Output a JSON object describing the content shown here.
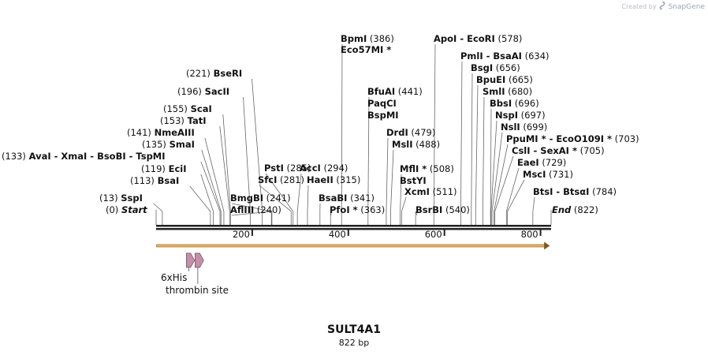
{
  "credit": {
    "prefix": "Created by",
    "brand": "SnapGene",
    "logo_icon": "snapgene-logo-icon"
  },
  "map": {
    "name": "SULT4A1",
    "length_label": "822 bp",
    "total_bp": 822,
    "start_label": "Start",
    "start_pos": "(0)",
    "end_label": "End",
    "end_pos": "(822)",
    "ticks": [
      "200",
      "400",
      "600",
      "800"
    ],
    "tick_values": [
      200,
      400,
      600,
      800
    ]
  },
  "colors": {
    "line": "#222222",
    "orf": "#f4b45a",
    "feature": "#c48fa8",
    "text": "#111111"
  },
  "sites": [
    {
      "name": "SspI",
      "pos": 13,
      "pos_label": "(13)"
    },
    {
      "name": "BsaI",
      "pos": 113,
      "pos_label": "(113)"
    },
    {
      "name": "EciI",
      "pos": 119,
      "pos_label": "(119)"
    },
    {
      "name": "AvaI - XmaI - BsoBI - TspMI",
      "pos": 133,
      "pos_label": "(133)"
    },
    {
      "name": "SmaI",
      "pos": 135,
      "pos_label": "(135)"
    },
    {
      "name": "NmeAIII",
      "pos": 141,
      "pos_label": "(141)"
    },
    {
      "name": "TatI",
      "pos": 153,
      "pos_label": "(153)"
    },
    {
      "name": "ScaI",
      "pos": 155,
      "pos_label": "(155)"
    },
    {
      "name": "SacII",
      "pos": 196,
      "pos_label": "(196)"
    },
    {
      "name": "BseRI",
      "pos": 221,
      "pos_label": "(221)"
    },
    {
      "name": "AflIII",
      "pos": 240,
      "pos_label": "(240)"
    },
    {
      "name": "BmgBI",
      "pos": 241,
      "pos_label": "(241)"
    },
    {
      "name": "SfcI",
      "pos": 281,
      "pos_label": "(281)"
    },
    {
      "name": "PstI",
      "pos": 285,
      "pos_label": "(285)"
    },
    {
      "name": "AccI",
      "pos": 294,
      "pos_label": "(294)"
    },
    {
      "name": "HaeII",
      "pos": 315,
      "pos_label": "(315)"
    },
    {
      "name": "BsaBI",
      "pos": 341,
      "pos_label": "(341)"
    },
    {
      "name": "PfoI *",
      "pos": 363,
      "pos_label": "(363)"
    },
    {
      "name": "BpmI",
      "pos": 386,
      "pos_label": "(386)"
    },
    {
      "name": "Eco57MI *",
      "pos": 386,
      "pos_label": ""
    },
    {
      "name": "BfuAI",
      "pos": 441,
      "pos_label": "(441)"
    },
    {
      "name": "PaqCI",
      "pos": 441,
      "pos_label": ""
    },
    {
      "name": "BspMI",
      "pos": 441,
      "pos_label": ""
    },
    {
      "name": "DrdI",
      "pos": 479,
      "pos_label": "(479)"
    },
    {
      "name": "MslI",
      "pos": 488,
      "pos_label": "(488)"
    },
    {
      "name": "MflI *",
      "pos": 508,
      "pos_label": "(508)"
    },
    {
      "name": "BstYI",
      "pos": 508,
      "pos_label": ""
    },
    {
      "name": "XcmI",
      "pos": 511,
      "pos_label": "(511)"
    },
    {
      "name": "BsrBI",
      "pos": 540,
      "pos_label": "(540)"
    },
    {
      "name": "ApoI - EcoRI",
      "pos": 578,
      "pos_label": "(578)"
    },
    {
      "name": "PmlI - BsaAI",
      "pos": 634,
      "pos_label": "(634)"
    },
    {
      "name": "BsgI",
      "pos": 656,
      "pos_label": "(656)"
    },
    {
      "name": "BpuEI",
      "pos": 665,
      "pos_label": "(665)"
    },
    {
      "name": "SmlI",
      "pos": 680,
      "pos_label": "(680)"
    },
    {
      "name": "BbsI",
      "pos": 696,
      "pos_label": "(696)"
    },
    {
      "name": "NspI",
      "pos": 697,
      "pos_label": "(697)"
    },
    {
      "name": "NslI",
      "pos": 699,
      "pos_label": "(699)"
    },
    {
      "name": "PpuMI * - EcoO109I *",
      "pos": 703,
      "pos_label": "(703)"
    },
    {
      "name": "CslI - SexAI *",
      "pos": 705,
      "pos_label": "(705)"
    },
    {
      "name": "EaeI",
      "pos": 729,
      "pos_label": "(729)"
    },
    {
      "name": "MscI",
      "pos": 731,
      "pos_label": "(731)"
    },
    {
      "name": "BtsI - BtsαI",
      "pos": 784,
      "pos_label": "(784)"
    }
  ],
  "features": [
    {
      "name": "6xHis",
      "start": 63,
      "end": 80
    },
    {
      "name": "thrombin site",
      "start": 81,
      "end": 99
    }
  ],
  "orf": {
    "start": 1,
    "end": 819
  }
}
